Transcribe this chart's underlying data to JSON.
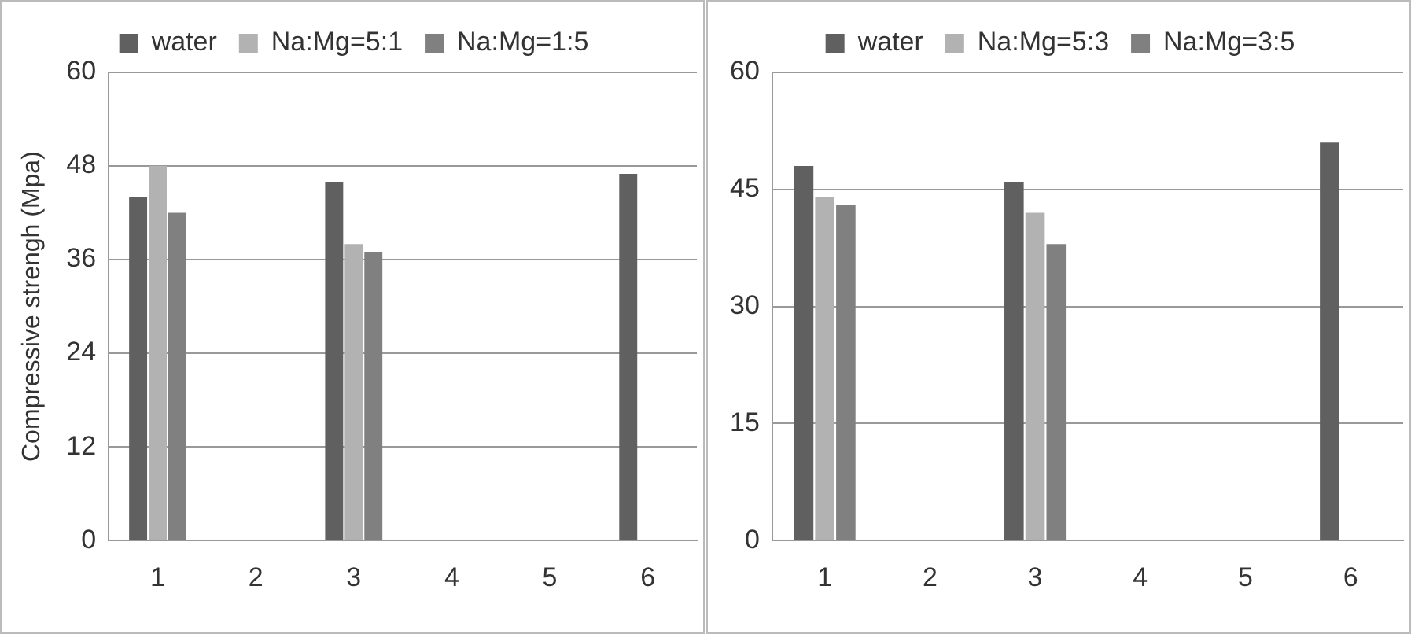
{
  "chart_data": [
    {
      "type": "bar",
      "ylabel": "Compressive strengh (Mpa)",
      "categories": [
        "1",
        "2",
        "3",
        "4",
        "5",
        "6"
      ],
      "series": [
        {
          "name": "water",
          "color": "#606060",
          "values": [
            44,
            null,
            46,
            null,
            null,
            47
          ]
        },
        {
          "name": "Na:Mg=5:1",
          "color": "#b2b2b2",
          "values": [
            48,
            null,
            38,
            null,
            null,
            null
          ]
        },
        {
          "name": "Na:Mg=1:5",
          "color": "#808080",
          "values": [
            42,
            null,
            37,
            null,
            null,
            null
          ]
        }
      ],
      "ylim": [
        0,
        60
      ],
      "yticks": [
        0,
        12,
        24,
        36,
        48,
        60
      ],
      "grid": "y",
      "legend": "top"
    },
    {
      "type": "bar",
      "categories": [
        "1",
        "2",
        "3",
        "4",
        "5",
        "6"
      ],
      "series": [
        {
          "name": "water",
          "color": "#606060",
          "values": [
            48,
            null,
            46,
            null,
            null,
            51
          ]
        },
        {
          "name": "Na:Mg=5:3",
          "color": "#b2b2b2",
          "values": [
            44,
            null,
            42,
            null,
            null,
            null
          ]
        },
        {
          "name": "Na:Mg=3:5",
          "color": "#808080",
          "values": [
            43,
            null,
            38,
            null,
            null,
            null
          ]
        }
      ],
      "ylim": [
        0,
        60
      ],
      "yticks": [
        0,
        15,
        30,
        45,
        60
      ],
      "grid": "y",
      "legend": "top"
    }
  ]
}
